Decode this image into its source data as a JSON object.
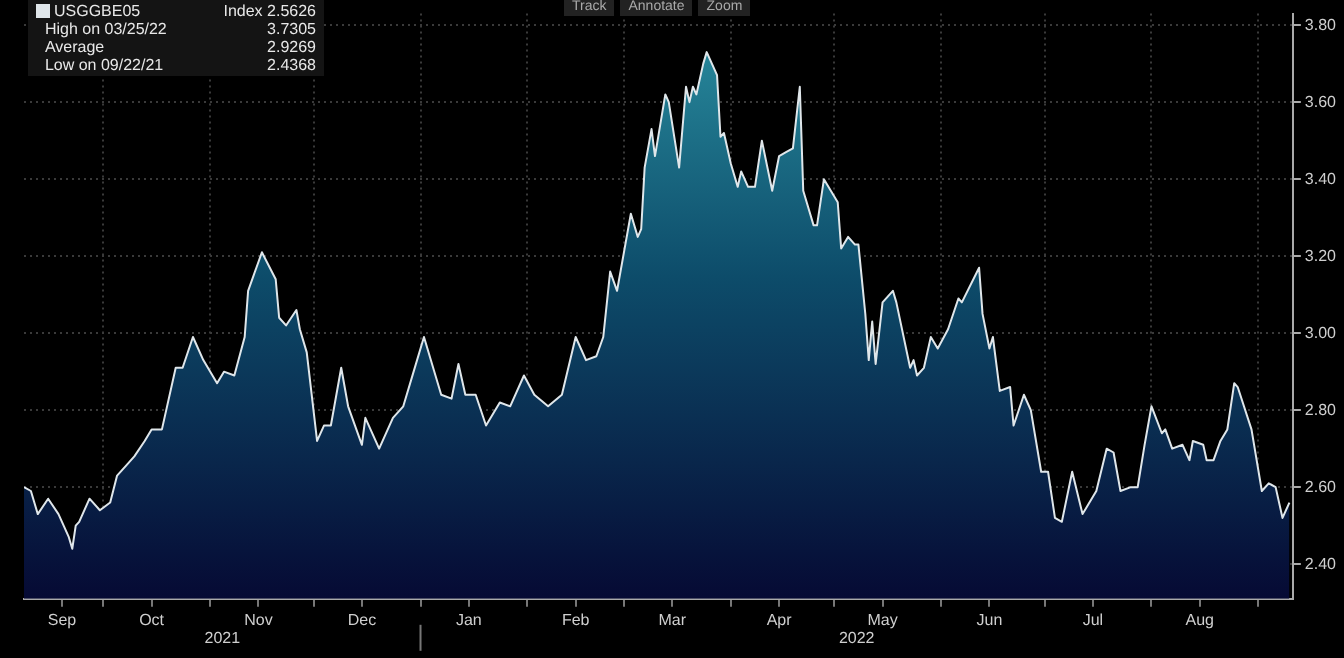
{
  "chart_data": {
    "type": "area",
    "grid": true,
    "legend": "top left",
    "xlim": [
      "2021-09-08",
      "2022-09-11"
    ],
    "ylim": [
      2.31,
      3.83
    ],
    "yticks": [
      {
        "value": 2.4,
        "label": "2.40"
      },
      {
        "value": 2.6,
        "label": "2.60"
      },
      {
        "value": 2.8,
        "label": "2.80"
      },
      {
        "value": 3.0,
        "label": "3.00"
      },
      {
        "value": 3.2,
        "label": "3.20"
      },
      {
        "value": 3.4,
        "label": "3.40"
      },
      {
        "value": 3.6,
        "label": "3.60"
      },
      {
        "value": 3.8,
        "label": "3.80"
      }
    ],
    "xticks": [
      {
        "value": "2021-09-19",
        "label": "Sep"
      },
      {
        "value": "2021-10-01",
        "label": null
      },
      {
        "value": "2021-10-15",
        "label": "Oct"
      },
      {
        "value": "2021-11-01",
        "label": null
      },
      {
        "value": "2021-11-15",
        "label": "Nov"
      },
      {
        "value": "2021-12-01",
        "label": null
      },
      {
        "value": "2021-12-15",
        "label": "Dec"
      },
      {
        "value": "2022-01-01",
        "label": null
      },
      {
        "value": "2022-01-15",
        "label": "Jan"
      },
      {
        "value": "2022-02-01",
        "label": null
      },
      {
        "value": "2022-02-15",
        "label": "Feb"
      },
      {
        "value": "2022-03-01",
        "label": null
      },
      {
        "value": "2022-03-15",
        "label": "Mar"
      },
      {
        "value": "2022-04-01",
        "label": null
      },
      {
        "value": "2022-04-15",
        "label": "Apr"
      },
      {
        "value": "2022-05-01",
        "label": null
      },
      {
        "value": "2022-05-15",
        "label": "May"
      },
      {
        "value": "2022-06-01",
        "label": null
      },
      {
        "value": "2022-06-15",
        "label": "Jun"
      },
      {
        "value": "2022-07-01",
        "label": null
      },
      {
        "value": "2022-07-15",
        "label": "Jul"
      },
      {
        "value": "2022-08-01",
        "label": null
      },
      {
        "value": "2022-08-15",
        "label": "Aug"
      },
      {
        "value": "2022-09-01",
        "label": null
      }
    ],
    "annotations": [
      "Index 2.5626",
      "High on 03/25/22",
      "3.7305",
      "Average",
      "2.9269",
      "Low on 09/22/21",
      "2.4368",
      "Track",
      "Annotate",
      "Zoom",
      "2021",
      "2022"
    ],
    "series": [
      {
        "name": "USGGBE05",
        "color": "#dfe6ea",
        "x": [
          "2021-09-08",
          "2021-09-10",
          "2021-09-12",
          "2021-09-15",
          "2021-09-18",
          "2021-09-21",
          "2021-09-22",
          "2021-09-23",
          "2021-09-24",
          "2021-09-27",
          "2021-09-30",
          "2021-10-03",
          "2021-10-05",
          "2021-10-08",
          "2021-10-10",
          "2021-10-13",
          "2021-10-15",
          "2021-10-18",
          "2021-10-22",
          "2021-10-24",
          "2021-10-27",
          "2021-10-30",
          "2021-11-03",
          "2021-11-05",
          "2021-11-08",
          "2021-11-11",
          "2021-11-12",
          "2021-11-16",
          "2021-11-20",
          "2021-11-21",
          "2021-11-23",
          "2021-11-26",
          "2021-11-27",
          "2021-11-29",
          "2021-12-02",
          "2021-12-04",
          "2021-12-06",
          "2021-12-09",
          "2021-12-11",
          "2021-12-15",
          "2021-12-16",
          "2021-12-20",
          "2021-12-24",
          "2021-12-27",
          "2021-12-30",
          "2022-01-02",
          "2022-01-07",
          "2022-01-10",
          "2022-01-12",
          "2022-01-14",
          "2022-01-17",
          "2022-01-20",
          "2022-01-24",
          "2022-01-27",
          "2022-01-31",
          "2022-02-03",
          "2022-02-07",
          "2022-02-11",
          "2022-02-15",
          "2022-02-18",
          "2022-02-21",
          "2022-02-23",
          "2022-02-25",
          "2022-02-27",
          "2022-03-03",
          "2022-03-05",
          "2022-03-06",
          "2022-03-07",
          "2022-03-09",
          "2022-03-10",
          "2022-03-13",
          "2022-03-14",
          "2022-03-17",
          "2022-03-19",
          "2022-03-20",
          "2022-03-21",
          "2022-03-22",
          "2022-03-24",
          "2022-03-25",
          "2022-03-28",
          "2022-03-29",
          "2022-03-30",
          "2022-04-01",
          "2022-04-03",
          "2022-04-04",
          "2022-04-06",
          "2022-04-08",
          "2022-04-10",
          "2022-04-13",
          "2022-04-15",
          "2022-04-17",
          "2022-04-19",
          "2022-04-21",
          "2022-04-22",
          "2022-04-25",
          "2022-04-26",
          "2022-04-28",
          "2022-05-02",
          "2022-05-03",
          "2022-05-05",
          "2022-05-07",
          "2022-05-08",
          "2022-05-10",
          "2022-05-11",
          "2022-05-12",
          "2022-05-13",
          "2022-05-15",
          "2022-05-18",
          "2022-05-19",
          "2022-05-23",
          "2022-05-24",
          "2022-05-25",
          "2022-05-27",
          "2022-05-29",
          "2022-05-31",
          "2022-06-03",
          "2022-06-06",
          "2022-06-07",
          "2022-06-12",
          "2022-06-13",
          "2022-06-15",
          "2022-06-16",
          "2022-06-18",
          "2022-06-21",
          "2022-06-22",
          "2022-06-25",
          "2022-06-27",
          "2022-06-30",
          "2022-07-02",
          "2022-07-04",
          "2022-07-06",
          "2022-07-09",
          "2022-07-12",
          "2022-07-16",
          "2022-07-19",
          "2022-07-21",
          "2022-07-23",
          "2022-07-26",
          "2022-07-28",
          "2022-07-30",
          "2022-08-01",
          "2022-08-04",
          "2022-08-05",
          "2022-08-07",
          "2022-08-10",
          "2022-08-12",
          "2022-08-13",
          "2022-08-16",
          "2022-08-17",
          "2022-08-19",
          "2022-08-21",
          "2022-08-23",
          "2022-08-25",
          "2022-08-26",
          "2022-08-30",
          "2022-09-02",
          "2022-09-04",
          "2022-09-06",
          "2022-09-08",
          "2022-09-10"
        ],
        "values": [
          2.6,
          2.59,
          2.53,
          2.57,
          2.53,
          2.47,
          2.44,
          2.5,
          2.51,
          2.57,
          2.54,
          2.56,
          2.63,
          2.66,
          2.68,
          2.72,
          2.75,
          2.75,
          2.91,
          2.91,
          2.99,
          2.93,
          2.87,
          2.9,
          2.89,
          2.99,
          3.11,
          3.21,
          3.14,
          3.04,
          3.02,
          3.06,
          3.01,
          2.95,
          2.72,
          2.76,
          2.76,
          2.91,
          2.81,
          2.71,
          2.78,
          2.7,
          2.78,
          2.81,
          2.9,
          2.99,
          2.84,
          2.83,
          2.92,
          2.84,
          2.84,
          2.76,
          2.82,
          2.81,
          2.89,
          2.84,
          2.81,
          2.84,
          2.99,
          2.93,
          2.94,
          2.99,
          3.16,
          3.11,
          3.31,
          3.25,
          3.27,
          3.43,
          3.53,
          3.46,
          3.62,
          3.6,
          3.43,
          3.64,
          3.6,
          3.64,
          3.62,
          3.7,
          3.73,
          3.67,
          3.51,
          3.52,
          3.44,
          3.38,
          3.42,
          3.38,
          3.38,
          3.5,
          3.37,
          3.46,
          3.47,
          3.48,
          3.64,
          3.37,
          3.28,
          3.28,
          3.4,
          3.34,
          3.22,
          3.25,
          3.23,
          3.23,
          3.05,
          2.93,
          3.03,
          2.92,
          3.08,
          3.11,
          3.08,
          2.91,
          2.93,
          2.89,
          2.91,
          2.99,
          2.96,
          3.01,
          3.09,
          3.08,
          3.17,
          3.05,
          2.96,
          2.99,
          2.85,
          2.86,
          2.76,
          2.84,
          2.8,
          2.64,
          2.64,
          2.52,
          2.51,
          2.64,
          2.53,
          2.59,
          2.7,
          2.69,
          2.59,
          2.6,
          2.6,
          2.71,
          2.81,
          2.74,
          2.75,
          2.7,
          2.71,
          2.67,
          2.72,
          2.71,
          2.67,
          2.67,
          2.72,
          2.75,
          2.87,
          2.86,
          2.75,
          2.59,
          2.61,
          2.6,
          2.52,
          2.56
        ]
      }
    ]
  }
}
